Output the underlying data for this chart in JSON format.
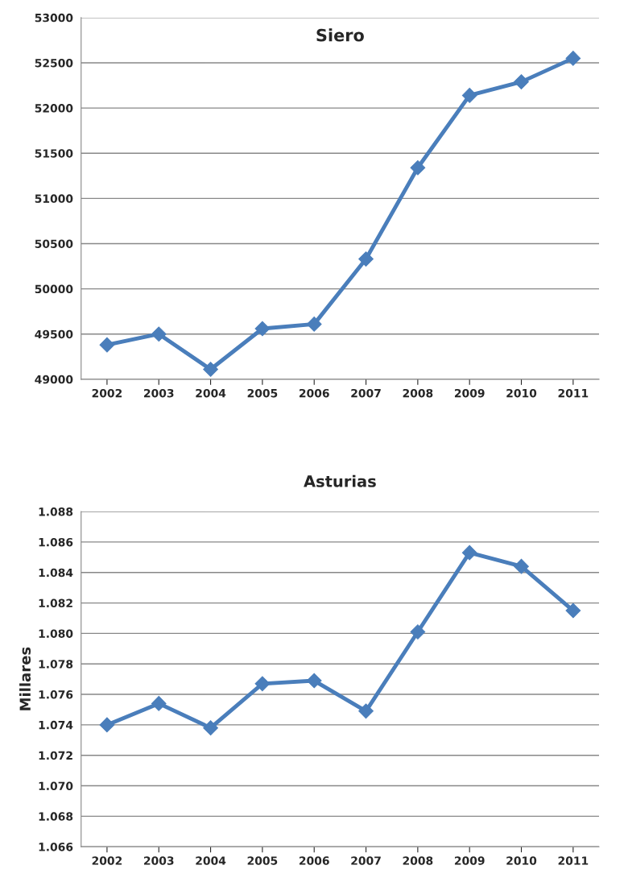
{
  "chart_data": [
    {
      "type": "line",
      "title": "Siero",
      "categories": [
        "2002",
        "2003",
        "2004",
        "2005",
        "2006",
        "2007",
        "2008",
        "2009",
        "2010",
        "2011"
      ],
      "series": [
        {
          "color": "#4a7ebb",
          "values": [
            49380,
            49500,
            49110,
            49560,
            49610,
            50330,
            51340,
            52140,
            52290,
            52550
          ]
        }
      ],
      "ylim": [
        49000,
        53000
      ],
      "yticks": [
        49000,
        49500,
        50000,
        50500,
        51000,
        51500,
        52000,
        52500,
        53000
      ],
      "grid": "y",
      "marker": "diamond",
      "legend": false
    },
    {
      "type": "line",
      "title": "Asturias",
      "ylabel": "Millares",
      "categories": [
        "2002",
        "2003",
        "2004",
        "2005",
        "2006",
        "2007",
        "2008",
        "2009",
        "2010",
        "2011"
      ],
      "series": [
        {
          "color": "#4a7ebb",
          "values": [
            1.074,
            1.0754,
            1.0738,
            1.0767,
            1.0769,
            1.0749,
            1.0801,
            1.0853,
            1.0844,
            1.0815
          ]
        }
      ],
      "ylim": [
        1.066,
        1.088
      ],
      "yticks": [
        {
          "value": 1.066,
          "label": "1.066"
        },
        {
          "value": 1.068,
          "label": "1.068"
        },
        {
          "value": 1.07,
          "label": "1.070"
        },
        {
          "value": 1.072,
          "label": "1.072"
        },
        {
          "value": 1.074,
          "label": "1.074"
        },
        {
          "value": 1.076,
          "label": "1.076"
        },
        {
          "value": 1.078,
          "label": "1.078"
        },
        {
          "value": 1.08,
          "label": "1.080"
        },
        {
          "value": 1.082,
          "label": "1.082"
        },
        {
          "value": 1.084,
          "label": "1.084"
        },
        {
          "value": 1.086,
          "label": "1.086"
        },
        {
          "value": 1.088,
          "label": "1.088"
        }
      ],
      "grid": "y",
      "marker": "diamond",
      "legend": false
    }
  ]
}
